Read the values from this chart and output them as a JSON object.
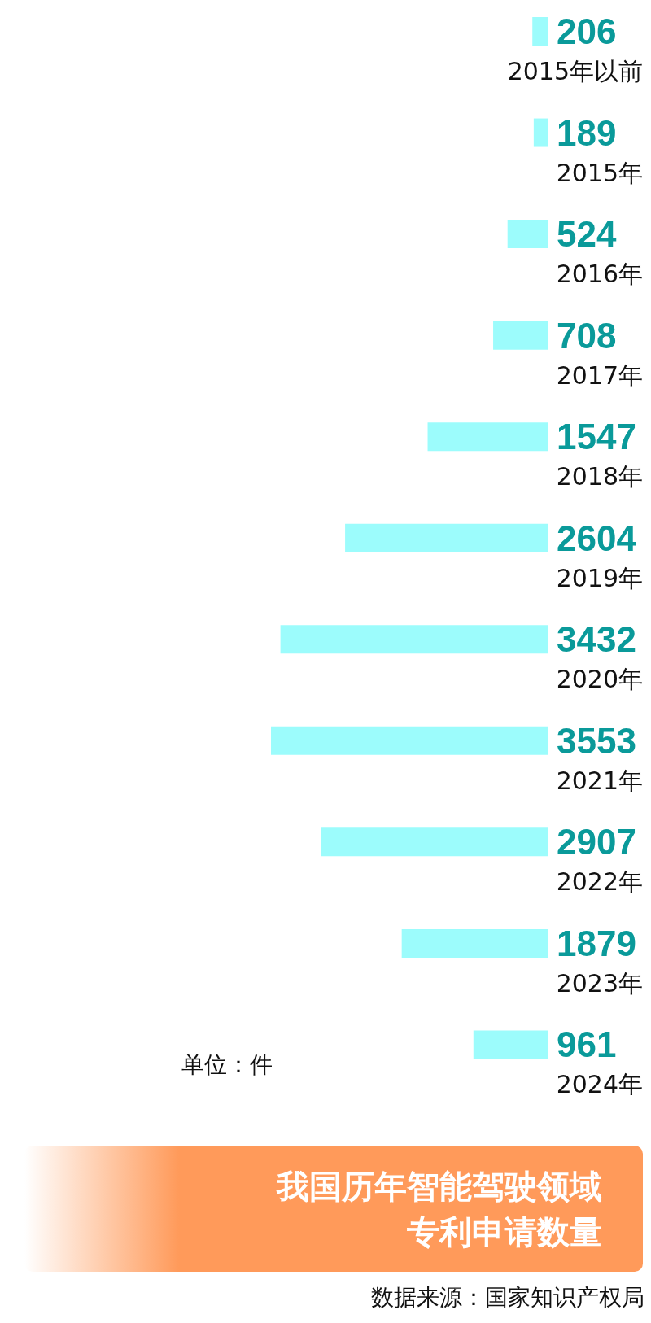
{
  "chart_data": {
    "type": "bar",
    "orientation": "horizontal",
    "title": "我国历年智能驾驶领域专利申请数量",
    "categories": [
      "2015年以前",
      "2015年",
      "2016年",
      "2017年",
      "2018年",
      "2019年",
      "2020年",
      "2021年",
      "2022年",
      "2023年",
      "2024年"
    ],
    "values": [
      206,
      189,
      524,
      708,
      1547,
      2604,
      3432,
      3553,
      2907,
      1879,
      961
    ],
    "color": "#9cfcfc",
    "data_labels": true,
    "annotations": [
      "单位：件",
      "数据来源：国家知识产权局"
    ]
  }
}
